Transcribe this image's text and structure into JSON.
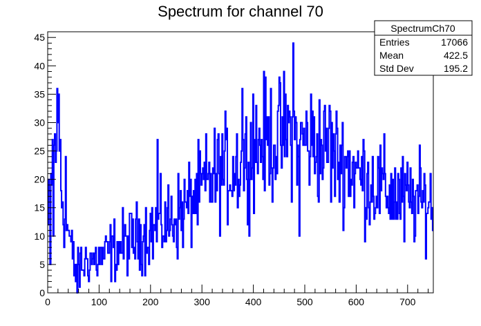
{
  "chart_data": {
    "type": "histogram",
    "title": "Spectrum for channel 70",
    "xlabel": "",
    "ylabel": "",
    "xlim": [
      0,
      750
    ],
    "ylim": [
      0,
      46
    ],
    "x_ticks": [
      0,
      100,
      200,
      300,
      400,
      500,
      600,
      700
    ],
    "y_ticks": [
      0,
      5,
      10,
      15,
      20,
      25,
      30,
      35,
      40,
      45
    ],
    "color": "#0000ff",
    "grid": false,
    "bin_width": 1.5,
    "profile": [
      [
        0,
        10
      ],
      [
        5,
        18
      ],
      [
        10,
        24
      ],
      [
        15,
        26
      ],
      [
        20,
        30
      ],
      [
        25,
        20
      ],
      [
        30,
        16
      ],
      [
        35,
        13
      ],
      [
        40,
        11
      ],
      [
        45,
        8
      ],
      [
        50,
        6
      ],
      [
        55,
        4
      ],
      [
        60,
        4
      ],
      [
        65,
        5
      ],
      [
        70,
        5
      ],
      [
        80,
        6
      ],
      [
        90,
        6
      ],
      [
        100,
        6
      ],
      [
        120,
        7
      ],
      [
        140,
        8
      ],
      [
        160,
        9
      ],
      [
        180,
        10
      ],
      [
        200,
        11
      ],
      [
        220,
        12
      ],
      [
        240,
        13
      ],
      [
        260,
        14
      ],
      [
        280,
        16
      ],
      [
        300,
        18
      ],
      [
        320,
        20
      ],
      [
        340,
        21
      ],
      [
        360,
        22
      ],
      [
        380,
        23
      ],
      [
        400,
        25
      ],
      [
        420,
        27
      ],
      [
        440,
        27
      ],
      [
        460,
        28
      ],
      [
        480,
        28
      ],
      [
        500,
        27
      ],
      [
        520,
        26
      ],
      [
        540,
        25
      ],
      [
        560,
        24
      ],
      [
        580,
        23
      ],
      [
        600,
        21
      ],
      [
        620,
        20
      ],
      [
        640,
        19
      ],
      [
        660,
        18
      ],
      [
        680,
        17
      ],
      [
        700,
        16
      ],
      [
        720,
        16
      ],
      [
        750,
        16
      ]
    ],
    "spikes": [
      {
        "x": 5,
        "y": 5
      },
      {
        "x": 11,
        "y": 10
      },
      {
        "x": 19,
        "y": 36
      },
      {
        "x": 22,
        "y": 35
      },
      {
        "x": 25,
        "y": 27
      },
      {
        "x": 35,
        "y": 24
      },
      {
        "x": 55,
        "y": 2
      },
      {
        "x": 57,
        "y": 0
      },
      {
        "x": 214,
        "y": 27
      },
      {
        "x": 378,
        "y": 36
      },
      {
        "x": 400,
        "y": 35
      },
      {
        "x": 478,
        "y": 44
      },
      {
        "x": 490,
        "y": 10
      },
      {
        "x": 548,
        "y": 33
      },
      {
        "x": 694,
        "y": 9
      }
    ]
  },
  "stats_box": {
    "name": "SpectrumCh70",
    "rows": [
      {
        "label": "Entries",
        "value": "17066"
      },
      {
        "label": "Mean",
        "value": "422.5"
      },
      {
        "label": "Std Dev",
        "value": "195.2"
      }
    ]
  }
}
